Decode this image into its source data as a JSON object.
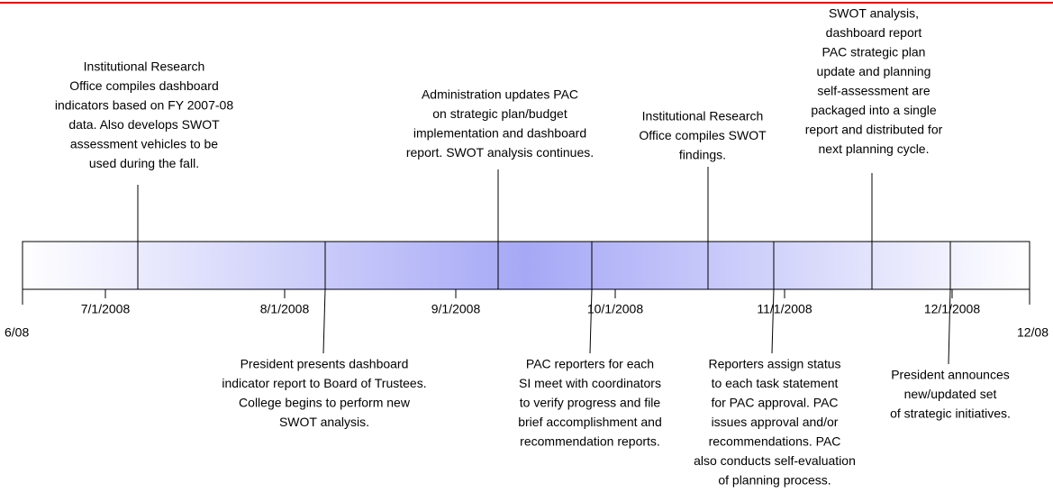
{
  "start_label": "6/08",
  "end_label": "12/08",
  "ticks": [
    "7/1/2008",
    "8/1/2008",
    "9/1/2008",
    "10/1/2008",
    "11/1/2008",
    "12/1/2008"
  ],
  "events_above": [
    {
      "lines": [
        "Institutional Research",
        "Office compiles dashboard",
        "indicators based on FY 2007-08",
        "data. Also develops SWOT",
        "assessment vehicles to be",
        "used during the fall."
      ]
    },
    {
      "lines": [
        "Administration updates PAC",
        "on strategic plan/budget",
        "implementation and dashboard",
        "report. SWOT analysis continues."
      ]
    },
    {
      "lines": [
        "Institutional Research",
        "Office compiles SWOT",
        "findings."
      ]
    },
    {
      "lines": [
        "SWOT analysis,",
        "dashboard report",
        "PAC strategic plan",
        "update and planning",
        "self-assessment are",
        "packaged into a single",
        "report and distributed for",
        "next planning cycle."
      ]
    }
  ],
  "events_below": [
    {
      "lines": [
        "President presents dashboard",
        "indicator report to Board of Trustees.",
        "College begins to perform new",
        "SWOT analysis."
      ]
    },
    {
      "lines": [
        "PAC reporters for each",
        "SI meet with coordinators",
        "to verify progress and file",
        "brief accomplishment and",
        "recommendation reports."
      ]
    },
    {
      "lines": [
        "Reporters assign status",
        "to each task statement",
        "for PAC approval. PAC",
        "issues approval and/or",
        "recommendations. PAC",
        "also conducts self-evaluation",
        "of planning process."
      ]
    },
    {
      "lines": [
        "President announces",
        "new/updated set",
        "of strategic initiatives."
      ]
    }
  ]
}
